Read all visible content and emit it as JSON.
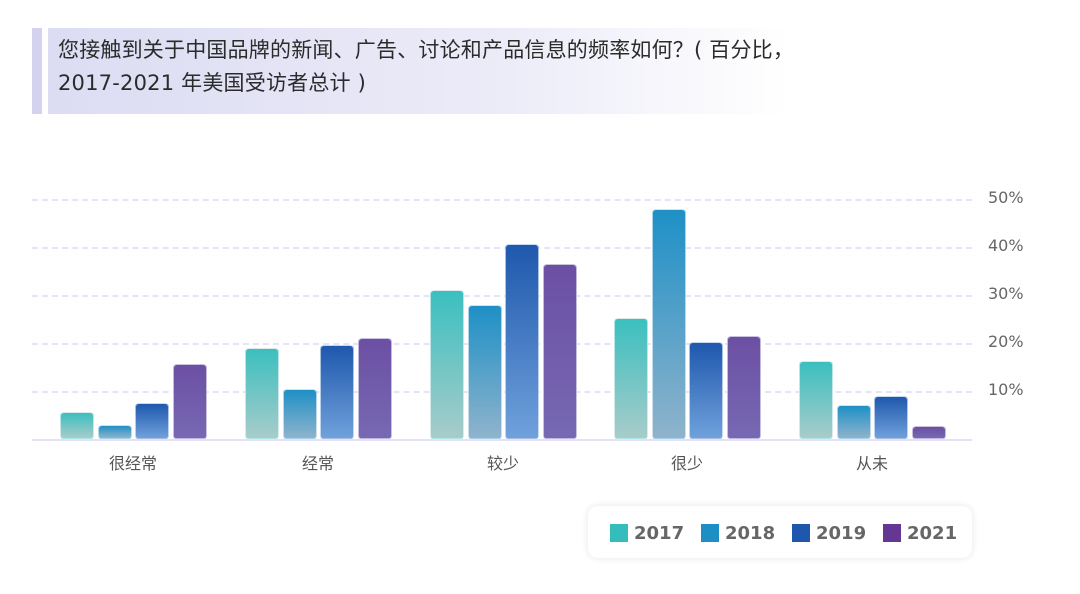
{
  "title": {
    "line1": "您接触到关于中国品牌的新闻、广告、讨论和产品信息的频率如何？( 百分比，",
    "line2": "2017-2021 年美国受访者总计 )"
  },
  "legend": {
    "items": [
      {
        "label": "2017",
        "color": "#33bdbd"
      },
      {
        "label": "2018",
        "color": "#1d8fc4"
      },
      {
        "label": "2019",
        "color": "#1e57ab"
      },
      {
        "label": "2021",
        "color": "#643795"
      }
    ]
  },
  "axis": {
    "yticks": [
      "50%",
      "40%",
      "30%",
      "20%",
      "10%"
    ]
  },
  "chart_data": {
    "type": "bar",
    "title": "您接触到关于中国品牌的新闻、广告、讨论和产品信息的频率如何？( 百分比，2017-2021 年美国受访者总计 )",
    "categories": [
      "很经常",
      "经常",
      "较少",
      "很少",
      "从未"
    ],
    "series": [
      {
        "name": "2017",
        "values": [
          5.6,
          19.0,
          31.0,
          25.2,
          16.3
        ]
      },
      {
        "name": "2018",
        "values": [
          2.9,
          10.4,
          28.0,
          48.0,
          7.0
        ]
      },
      {
        "name": "2019",
        "values": [
          7.5,
          19.6,
          40.6,
          20.2,
          9.0
        ]
      },
      {
        "name": "2021",
        "values": [
          15.6,
          21.0,
          36.5,
          21.5,
          2.7
        ]
      }
    ],
    "xlabel": "",
    "ylabel": "",
    "ylim": [
      0,
      50
    ],
    "yticks": [
      "10%",
      "20%",
      "30%",
      "40%",
      "50%"
    ],
    "grid": true,
    "legend_position": "bottom-right"
  }
}
